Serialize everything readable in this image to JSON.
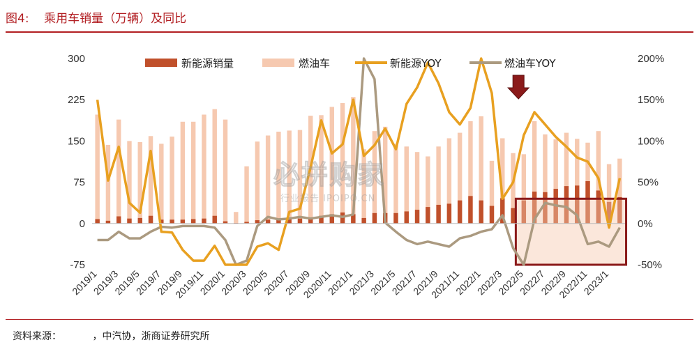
{
  "header": {
    "figure_label": "图4:",
    "title": "乘用车销量（万辆）及同比"
  },
  "source": "资料来源：          ，中汽协，浙商证券研究所",
  "watermark": {
    "main": "必拼购家",
    "sub": "行业报告 IPOIPO.CN"
  },
  "colors": {
    "ev_bar": "#c0502b",
    "ice_bar": "#f6c9b0",
    "ev_line": "#e8a020",
    "ice_line": "#ab9a80",
    "accent": "#8b1a1a"
  },
  "chart_data": {
    "type": "bar",
    "left_axis": {
      "min": -75,
      "max": 300,
      "ticks": [
        "300",
        "225",
        "150",
        "75",
        "0",
        "-75"
      ]
    },
    "right_axis": {
      "min": -50,
      "max": 200,
      "ticks": [
        "200%",
        "150%",
        "100%",
        "50%",
        "0%",
        "-50%"
      ]
    },
    "x_tick_labels": [
      "2019/1",
      "2019/3",
      "2019/5",
      "2019/7",
      "2019/9",
      "2019/11",
      "2020/1",
      "2020/3",
      "2020/5",
      "2020/7",
      "2020/9",
      "2020/11",
      "2021/1",
      "2021/3",
      "2021/5",
      "2021/7",
      "2021/9",
      "2021/11",
      "2022/1",
      "2022/3",
      "2022/5",
      "2022/7",
      "2022/9",
      "2022/11",
      "2023/1"
    ],
    "categories": [
      "2019/1",
      "2019/2",
      "2019/3",
      "2019/4",
      "2019/5",
      "2019/6",
      "2019/7",
      "2019/8",
      "2019/9",
      "2019/10",
      "2019/11",
      "2019/12",
      "2020/1",
      "2020/2",
      "2020/3",
      "2020/4",
      "2020/5",
      "2020/6",
      "2020/7",
      "2020/8",
      "2020/9",
      "2020/10",
      "2020/11",
      "2020/12",
      "2021/1",
      "2021/2",
      "2021/3",
      "2021/4",
      "2021/5",
      "2021/6",
      "2021/7",
      "2021/8",
      "2021/9",
      "2021/10",
      "2021/11",
      "2021/12",
      "2022/1",
      "2022/2",
      "2022/3",
      "2022/4",
      "2022/5",
      "2022/6",
      "2022/7",
      "2022/8",
      "2022/9",
      "2022/10",
      "2022/11",
      "2022/12",
      "2023/1",
      "2023/2"
    ],
    "series": [
      {
        "name": "新能源销量",
        "kind": "bar",
        "axis": "left",
        "values": [
          8,
          5,
          13,
          9,
          10,
          14,
          7,
          7,
          7,
          8,
          9,
          14,
          4,
          1,
          3,
          6,
          7,
          9,
          8,
          9,
          11,
          14,
          17,
          20,
          17,
          10,
          19,
          19,
          19,
          22,
          25,
          30,
          34,
          36,
          42,
          50,
          42,
          32,
          46,
          28,
          42,
          58,
          57,
          63,
          68,
          69,
          77,
          60,
          39,
          48
        ]
      },
      {
        "name": "燃油车",
        "kind": "bar",
        "axis": "left",
        "values": [
          198,
          143,
          189,
          150,
          148,
          159,
          145,
          158,
          185,
          185,
          198,
          208,
          189,
          21,
          104,
          149,
          160,
          167,
          169,
          170,
          196,
          197,
          212,
          219,
          230,
          135,
          168,
          176,
          145,
          140,
          130,
          122,
          140,
          155,
          165,
          186,
          195,
          114,
          155,
          128,
          126,
          186,
          162,
          153,
          165,
          154,
          147,
          168,
          108,
          118
        ]
      },
      {
        "name": "新能源YOY",
        "kind": "line",
        "axis": "right",
        "values": [
          150,
          52,
          93,
          25,
          13,
          88,
          -10,
          -11,
          -32,
          -45,
          -45,
          -27,
          -60,
          -75,
          -55,
          -28,
          -24,
          -32,
          14,
          18,
          68,
          125,
          85,
          96,
          150,
          82,
          95,
          115,
          90,
          145,
          165,
          195,
          170,
          135,
          120,
          140,
          200,
          158,
          30,
          50,
          107,
          135,
          120,
          105,
          93,
          80,
          75,
          55,
          -5,
          55
        ]
      },
      {
        "name": "燃油车YOY",
        "kind": "line",
        "axis": "right",
        "values": [
          -20,
          -20,
          -10,
          -18,
          -18,
          -10,
          -4,
          -5,
          -3,
          -3,
          -3,
          -5,
          -20,
          -75,
          -45,
          -3,
          8,
          5,
          6,
          8,
          6,
          8,
          10,
          8,
          11,
          200,
          175,
          1,
          -10,
          -20,
          -25,
          -22,
          -25,
          -28,
          -18,
          -15,
          -10,
          -7,
          10,
          -30,
          -50,
          5,
          25,
          22,
          20,
          10,
          -25,
          -22,
          -28,
          -5
        ]
      }
    ],
    "annotations": [
      {
        "type": "arrow-down",
        "at": "2022/5"
      },
      {
        "type": "box",
        "from": "2022/5",
        "to": "2023/2",
        "y_from": -50,
        "y_to": 30,
        "axis": "right"
      }
    ]
  }
}
